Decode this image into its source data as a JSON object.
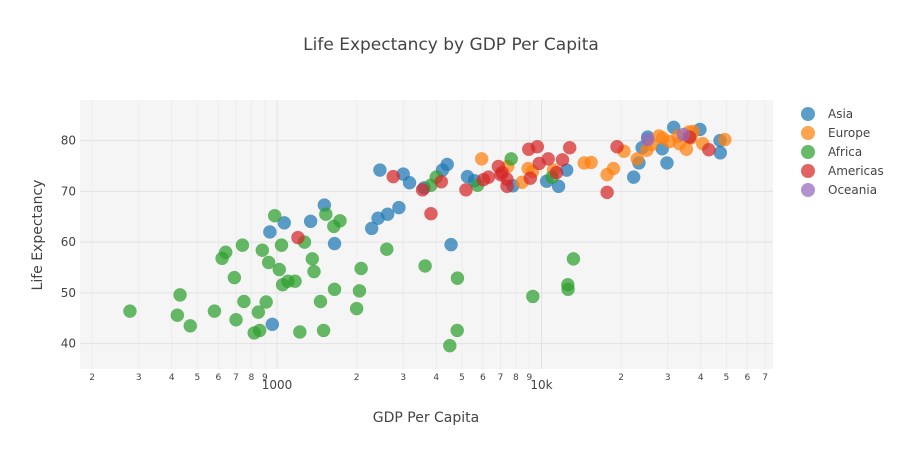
{
  "chart_data": {
    "type": "scatter",
    "title": "Life Expectancy by GDP Per Capita",
    "xlabel": "GDP Per Capita",
    "ylabel": "Life Expectancy",
    "xscale": "log",
    "xlim": [
      180,
      75000
    ],
    "ylim": [
      35,
      88
    ],
    "grid": true,
    "legend_position": "right",
    "x_ticks": [
      {
        "value": 200,
        "label": "2",
        "major": false
      },
      {
        "value": 300,
        "label": "3",
        "major": false
      },
      {
        "value": 400,
        "label": "4",
        "major": false
      },
      {
        "value": 500,
        "label": "5",
        "major": false
      },
      {
        "value": 600,
        "label": "6",
        "major": false
      },
      {
        "value": 700,
        "label": "7",
        "major": false
      },
      {
        "value": 800,
        "label": "8",
        "major": false
      },
      {
        "value": 900,
        "label": "9",
        "major": false
      },
      {
        "value": 1000,
        "label": "1000",
        "major": true
      },
      {
        "value": 2000,
        "label": "2",
        "major": false
      },
      {
        "value": 3000,
        "label": "3",
        "major": false
      },
      {
        "value": 4000,
        "label": "4",
        "major": false
      },
      {
        "value": 5000,
        "label": "5",
        "major": false
      },
      {
        "value": 6000,
        "label": "6",
        "major": false
      },
      {
        "value": 7000,
        "label": "7",
        "major": false
      },
      {
        "value": 8000,
        "label": "8",
        "major": false
      },
      {
        "value": 9000,
        "label": "9",
        "major": false
      },
      {
        "value": 10000,
        "label": "10k",
        "major": true
      },
      {
        "value": 20000,
        "label": "2",
        "major": false
      },
      {
        "value": 30000,
        "label": "3",
        "major": false
      },
      {
        "value": 40000,
        "label": "4",
        "major": false
      },
      {
        "value": 50000,
        "label": "5",
        "major": false
      },
      {
        "value": 60000,
        "label": "6",
        "major": false
      },
      {
        "value": 70000,
        "label": "7",
        "major": false
      }
    ],
    "y_ticks": [
      {
        "value": 40,
        "label": "40"
      },
      {
        "value": 50,
        "label": "50"
      },
      {
        "value": 60,
        "label": "60"
      },
      {
        "value": 70,
        "label": "70"
      },
      {
        "value": 80,
        "label": "80"
      }
    ],
    "series": [
      {
        "name": "Asia",
        "color": "#1f77b4",
        "points": [
          [
            1065,
            63.8
          ],
          [
            4400,
            75.3
          ],
          [
            5250,
            72.9
          ],
          [
            940,
            62.0
          ],
          [
            1510,
            67.3
          ],
          [
            2890,
            66.8
          ],
          [
            3170,
            71.7
          ],
          [
            4550,
            59.5
          ],
          [
            5580,
            72.1
          ],
          [
            2410,
            64.7
          ],
          [
            4220,
            74.2
          ],
          [
            1650,
            59.7
          ],
          [
            7790,
            71.1
          ],
          [
            3600,
            70.7
          ],
          [
            2450,
            74.2
          ],
          [
            3000,
            73.4
          ],
          [
            2620,
            65.5
          ],
          [
            2280,
            62.7
          ],
          [
            1340,
            64.1
          ],
          [
            960,
            43.8
          ],
          [
            22300,
            72.8
          ],
          [
            10460,
            72.0
          ],
          [
            11600,
            71.0
          ],
          [
            12450,
            74.2
          ],
          [
            23350,
            75.6
          ],
          [
            24000,
            78.6
          ],
          [
            25200,
            80.7
          ],
          [
            28600,
            78.4
          ],
          [
            29800,
            75.6
          ],
          [
            31600,
            82.6
          ],
          [
            36300,
            80.7
          ],
          [
            39700,
            82.2
          ],
          [
            47300,
            80.0
          ],
          [
            47400,
            77.6
          ]
        ]
      },
      {
        "name": "Europe",
        "color": "#ff7f0e",
        "points": [
          [
            5940,
            76.4
          ],
          [
            7450,
            74.9
          ],
          [
            8900,
            74.5
          ],
          [
            9250,
            73.9
          ],
          [
            11100,
            74.2
          ],
          [
            14500,
            75.6
          ],
          [
            15400,
            75.7
          ],
          [
            17700,
            73.3
          ],
          [
            18700,
            74.5
          ],
          [
            20500,
            77.9
          ],
          [
            23000,
            76.4
          ],
          [
            25000,
            78.1
          ],
          [
            26000,
            79.2
          ],
          [
            27800,
            80.9
          ],
          [
            28700,
            80.5
          ],
          [
            30500,
            79.8
          ],
          [
            33200,
            79.4
          ],
          [
            35300,
            78.3
          ],
          [
            36100,
            81.7
          ],
          [
            37500,
            81.8
          ],
          [
            40700,
            79.4
          ],
          [
            49300,
            80.2
          ],
          [
            36700,
            80.5
          ],
          [
            8450,
            71.8
          ],
          [
            32800,
            80.9
          ]
        ]
      },
      {
        "name": "Africa",
        "color": "#2ca02c",
        "points": [
          [
            278,
            46.4
          ],
          [
            420,
            45.6
          ],
          [
            430,
            49.6
          ],
          [
            470,
            43.5
          ],
          [
            580,
            46.4
          ],
          [
            620,
            56.8
          ],
          [
            640,
            58.0
          ],
          [
            690,
            53.0
          ],
          [
            700,
            44.7
          ],
          [
            740,
            59.4
          ],
          [
            750,
            48.3
          ],
          [
            820,
            42.1
          ],
          [
            860,
            42.6
          ],
          [
            850,
            46.2
          ],
          [
            880,
            58.4
          ],
          [
            910,
            48.2
          ],
          [
            930,
            56.0
          ],
          [
            980,
            65.2
          ],
          [
            1020,
            54.6
          ],
          [
            1040,
            59.4
          ],
          [
            1050,
            51.6
          ],
          [
            1100,
            52.3
          ],
          [
            1170,
            52.3
          ],
          [
            1220,
            42.3
          ],
          [
            1270,
            60.0
          ],
          [
            1360,
            56.7
          ],
          [
            1380,
            54.2
          ],
          [
            1460,
            48.3
          ],
          [
            1500,
            42.6
          ],
          [
            1530,
            65.5
          ],
          [
            1640,
            63.1
          ],
          [
            1650,
            50.7
          ],
          [
            1730,
            64.2
          ],
          [
            2000,
            46.9
          ],
          [
            2050,
            50.4
          ],
          [
            2080,
            54.8
          ],
          [
            2600,
            58.6
          ],
          [
            3630,
            55.3
          ],
          [
            4000,
            72.8
          ],
          [
            4500,
            39.6
          ],
          [
            4800,
            42.6
          ],
          [
            4810,
            52.9
          ],
          [
            7680,
            76.4
          ],
          [
            9270,
            49.3
          ],
          [
            12570,
            51.6
          ],
          [
            12600,
            50.7
          ],
          [
            13200,
            56.7
          ],
          [
            10950,
            72.8
          ],
          [
            3820,
            71.2
          ],
          [
            5730,
            71.2
          ]
        ]
      },
      {
        "name": "Americas",
        "color": "#d62728",
        "points": [
          [
            1200,
            60.9
          ],
          [
            2750,
            72.9
          ],
          [
            3550,
            70.3
          ],
          [
            3820,
            65.6
          ],
          [
            4180,
            71.9
          ],
          [
            5180,
            70.3
          ],
          [
            6030,
            72.3
          ],
          [
            6870,
            74.9
          ],
          [
            7010,
            73.3
          ],
          [
            7400,
            72.4
          ],
          [
            7410,
            71.0
          ],
          [
            8950,
            78.3
          ],
          [
            9070,
            72.6
          ],
          [
            9640,
            78.8
          ],
          [
            9800,
            75.5
          ],
          [
            10600,
            76.4
          ],
          [
            11400,
            73.7
          ],
          [
            12000,
            76.2
          ],
          [
            12780,
            78.6
          ],
          [
            17700,
            69.8
          ],
          [
            19300,
            78.8
          ],
          [
            36300,
            80.7
          ],
          [
            42900,
            78.2
          ],
          [
            7100,
            73.7
          ],
          [
            6300,
            72.8
          ]
        ]
      },
      {
        "name": "Oceania",
        "color": "#9467bd",
        "points": [
          [
            25200,
            80.2
          ],
          [
            34400,
            81.2
          ]
        ]
      }
    ]
  }
}
